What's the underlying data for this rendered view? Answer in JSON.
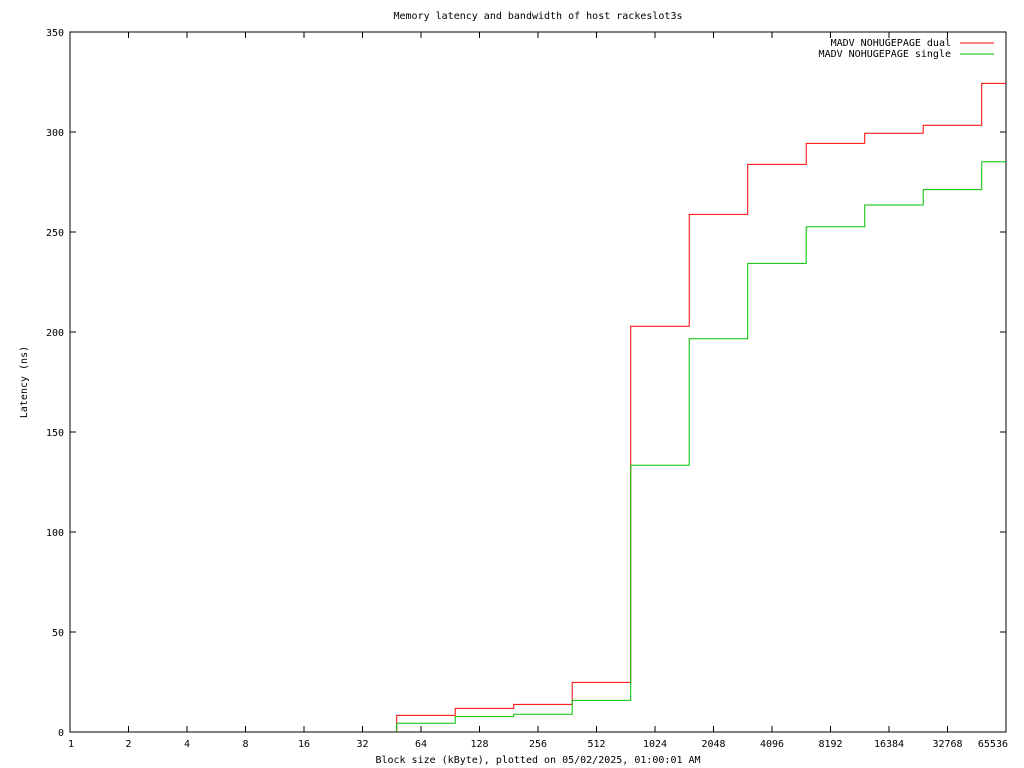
{
  "chart_data": {
    "type": "line",
    "step": true,
    "title": "Memory latency and bandwidth of host rackeslot3s",
    "xlabel": "Block size (kByte), plotted on 05/02/2025, 01:00:01 AM",
    "ylabel": "Latency (ns)",
    "xscale": "log2",
    "xlim": [
      1,
      65536
    ],
    "ylim": [
      0,
      350
    ],
    "xticks": [
      1,
      2,
      4,
      8,
      16,
      32,
      64,
      128,
      256,
      512,
      1024,
      2048,
      4096,
      8192,
      16384,
      32768,
      65536
    ],
    "yticks": [
      0,
      50,
      100,
      150,
      200,
      250,
      300,
      350
    ],
    "grid": false,
    "legend_position": "top-right",
    "x": [
      48,
      96,
      192,
      384,
      768,
      1536,
      3072,
      6144,
      12288,
      24576,
      49152
    ],
    "series": [
      {
        "name": "MADV NOHUGEPAGE dual",
        "color": "#ff0000",
        "values": [
          8.3,
          11.8,
          13.8,
          24.8,
          202.9,
          258.8,
          283.8,
          294.3,
          299.4,
          303.4,
          324.3
        ]
      },
      {
        "name": "MADV NOHUGEPAGE single",
        "color": "#00c000",
        "values": [
          4.4,
          7.7,
          8.9,
          15.8,
          133.4,
          196.6,
          234.3,
          252.6,
          263.5,
          271.2,
          285.1
        ]
      }
    ]
  }
}
